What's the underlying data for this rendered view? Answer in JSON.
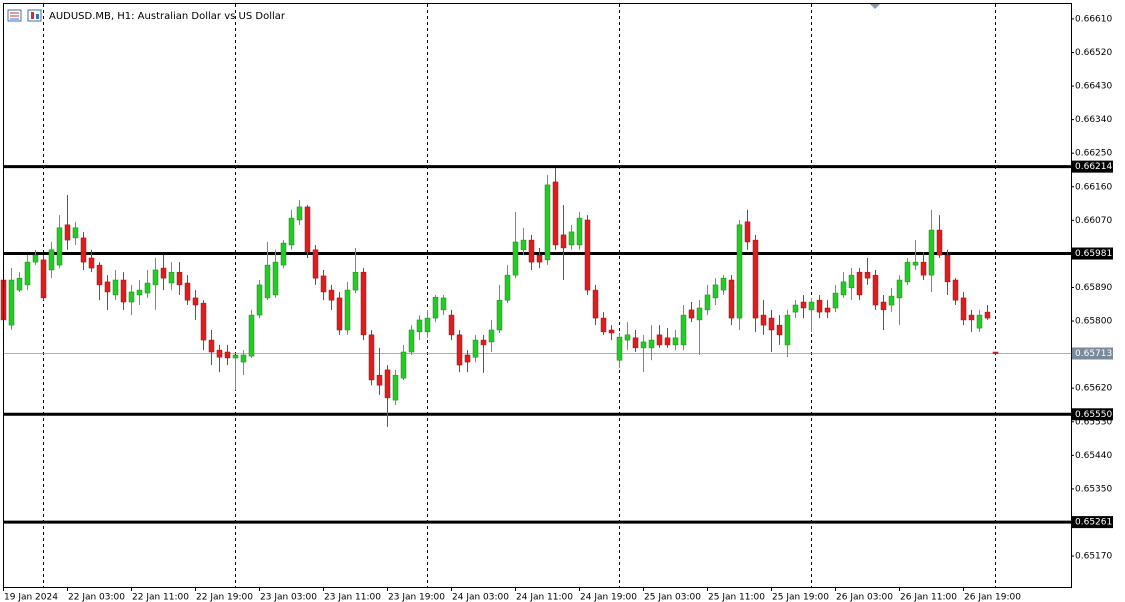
{
  "chart_data": {
    "type": "candlestick",
    "title": "AUDUSD.MB, H1: Australian Dollar vs US Dollar",
    "up_color": "#22cc22",
    "down_color": "#e01c1c",
    "categories": [
      "19 Jan 2024",
      null,
      null,
      null,
      null,
      null,
      null,
      null,
      "22 Jan 03:00",
      null,
      null,
      null,
      null,
      null,
      null,
      null,
      "22 Jan 11:00",
      null,
      null,
      null,
      null,
      null,
      null,
      null,
      "22 Jan 19:00",
      null,
      null,
      null,
      null,
      null,
      null,
      null,
      "23 Jan 03:00",
      null,
      null,
      null,
      null,
      null,
      null,
      null,
      "23 Jan 11:00",
      null,
      null,
      null,
      null,
      null,
      null,
      null,
      "23 Jan 19:00",
      null,
      null,
      null,
      null,
      null,
      null,
      null,
      "24 Jan 03:00",
      null,
      null,
      null,
      null,
      null,
      null,
      null,
      "24 Jan 11:00",
      null,
      null,
      null,
      null,
      null,
      null,
      null,
      "24 Jan 19:00",
      null,
      null,
      null,
      null,
      null,
      null,
      null,
      "25 Jan 03:00",
      null,
      null,
      null,
      null,
      null,
      null,
      null,
      "25 Jan 11:00",
      null,
      null,
      null,
      null,
      null,
      null,
      null,
      "25 Jan 19:00",
      null,
      null,
      null,
      null,
      null,
      null,
      null,
      "26 Jan 03:00",
      null,
      null,
      null,
      null,
      null,
      null,
      null,
      "26 Jan 11:00",
      null,
      null,
      null,
      null,
      null,
      null,
      null,
      "26 Jan 19:00",
      null,
      null,
      null,
      null
    ],
    "open": [
      0.6591,
      0.65789,
      0.65883,
      0.65897,
      0.65958,
      0.65964,
      0.65937,
      0.6595,
      0.66058,
      0.66023,
      0.66023,
      0.65969,
      0.6595,
      0.65905,
      0.6587,
      0.6591,
      0.65851,
      0.6587,
      0.65875,
      0.65897,
      0.65942,
      0.65902,
      0.65931,
      0.65902,
      0.65862,
      0.65848,
      0.65749,
      0.65722,
      0.65717,
      0.65701,
      0.6569,
      0.65706,
      0.65816,
      0.65862,
      0.6587,
      0.6595,
      0.66004,
      0.66071,
      0.66106,
      0.65991,
      0.65921,
      0.65883,
      0.65862,
      0.65776,
      0.65883,
      0.65931,
      0.65763,
      0.65655,
      0.65669,
      0.65588,
      0.65647,
      0.65717,
      0.65771,
      0.65771,
      0.65808,
      0.6583,
      0.65816,
      0.65763,
      0.65709,
      0.65703,
      0.65749,
      0.65744,
      0.65776,
      0.65856,
      0.65923,
      0.65991,
      0.66017,
      0.65977,
      0.65964,
      0.66173,
      0.66031,
      0.66004,
      0.66004,
      0.66071,
      0.65883,
      0.65808,
      0.65776,
      0.65695,
      0.65749,
      0.65755,
      0.65728,
      0.65728,
      0.65763,
      0.65755,
      0.65736,
      0.65736,
      0.6583,
      0.65803,
      0.6583,
      0.65862,
      0.65883,
      0.6591,
      0.65808,
      0.66066,
      0.66017,
      0.65816,
      0.65808,
      0.65789,
      0.65736,
      0.65824,
      0.65851,
      0.6583,
      0.65856,
      0.65835,
      0.65835,
      0.6587,
      0.65889,
      0.65931,
      0.65931,
      0.65923,
      0.65851,
      0.65843,
      0.65862,
      0.65905,
      0.6595,
      0.65958,
      0.65923,
      0.66044,
      0.65977,
      0.6591,
      0.65862,
      0.65816,
      0.65781,
      0.65824,
      0.65717
    ],
    "high": [
      0.65937,
      0.65942,
      0.65931,
      0.65977,
      0.65991,
      0.65977,
      0.66012,
      0.66084,
      0.66138,
      0.66066,
      0.66039,
      0.65991,
      0.65958,
      0.65923,
      0.65937,
      0.65931,
      0.65897,
      0.6591,
      0.65937,
      0.65969,
      0.65977,
      0.65958,
      0.65958,
      0.65923,
      0.65883,
      0.65856,
      0.65776,
      0.65736,
      0.65736,
      0.65709,
      0.65722,
      0.6583,
      0.6591,
      0.66012,
      0.65991,
      0.66017,
      0.66098,
      0.66125,
      0.66111,
      0.66004,
      0.65937,
      0.65897,
      0.65878,
      0.65905,
      0.65996,
      0.65942,
      0.65776,
      0.65728,
      0.65682,
      0.65669,
      0.65736,
      0.65789,
      0.65816,
      0.6583,
      0.6587,
      0.6587,
      0.6583,
      0.65776,
      0.65722,
      0.65763,
      0.65763,
      0.65803,
      0.65897,
      0.6595,
      0.66092,
      0.6605,
      0.66031,
      0.65996,
      0.66192,
      0.6621,
      0.66111,
      0.66058,
      0.66092,
      0.66084,
      0.65897,
      0.65824,
      0.65789,
      0.65768,
      0.65797,
      0.65776,
      0.65763,
      0.65789,
      0.65789,
      0.65781,
      0.65776,
      0.65843,
      0.65851,
      0.65856,
      0.65897,
      0.65915,
      0.65923,
      0.65923,
      0.66071,
      0.66098,
      0.66031,
      0.65856,
      0.6583,
      0.65816,
      0.6583,
      0.65856,
      0.6587,
      0.65862,
      0.6587,
      0.65856,
      0.65897,
      0.65931,
      0.65942,
      0.65942,
      0.65969,
      0.65937,
      0.6587,
      0.65889,
      0.65923,
      0.65969,
      0.66017,
      0.65985,
      0.66098,
      0.66084,
      0.65991,
      0.65915,
      0.65878,
      0.6583,
      0.6583,
      0.65843,
      0.65717
    ],
    "low": [
      0.65776,
      0.65776,
      0.65878,
      0.65883,
      0.6595,
      0.65856,
      0.65915,
      0.65942,
      0.65991,
      0.66004,
      0.65937,
      0.65931,
      0.65856,
      0.6583,
      0.65856,
      0.6583,
      0.65816,
      0.65843,
      0.65862,
      0.6583,
      0.65883,
      0.65883,
      0.6587,
      0.65843,
      0.65803,
      0.65722,
      0.65682,
      0.65663,
      0.65682,
      0.65615,
      0.65655,
      0.65701,
      0.65808,
      0.65856,
      0.65862,
      0.65942,
      0.65991,
      0.66058,
      0.65969,
      0.65897,
      0.65856,
      0.6583,
      0.65763,
      0.65763,
      0.65875,
      0.65749,
      0.65628,
      0.65602,
      0.65516,
      0.65575,
      0.65642,
      0.65709,
      0.65749,
      0.65755,
      0.65797,
      0.65816,
      0.65749,
      0.65663,
      0.65663,
      0.6569,
      0.65661,
      0.65717,
      0.65768,
      0.65848,
      0.65915,
      0.65977,
      0.65937,
      0.65942,
      0.6595,
      0.65991,
      0.6591,
      0.65991,
      0.65991,
      0.6587,
      0.65789,
      0.65763,
      0.65749,
      0.65674,
      0.65722,
      0.65717,
      0.65663,
      0.65695,
      0.65728,
      0.65728,
      0.65722,
      0.65722,
      0.65797,
      0.65709,
      0.65816,
      0.65843,
      0.6587,
      0.65789,
      0.65776,
      0.65991,
      0.65771,
      0.65763,
      0.65717,
      0.65736,
      0.65703,
      0.65808,
      0.65808,
      0.65771,
      0.65808,
      0.65808,
      0.65824,
      0.65862,
      0.65856,
      0.65856,
      0.65897,
      0.6583,
      0.65776,
      0.65824,
      0.65789,
      0.65897,
      0.65937,
      0.6591,
      0.65878,
      0.65969,
      0.6587,
      0.65843,
      0.65789,
      0.65771,
      0.65771,
      0.65803,
      0.65712
    ],
    "close": [
      0.65803,
      0.6591,
      0.65915,
      0.65958,
      0.65977,
      0.65862,
      0.65991,
      0.6605,
      0.66017,
      0.6605,
      0.65958,
      0.65942,
      0.65897,
      0.65878,
      0.6591,
      0.65851,
      0.65878,
      0.65883,
      0.65902,
      0.65937,
      0.65915,
      0.65931,
      0.65897,
      0.65856,
      0.65843,
      0.65749,
      0.65717,
      0.65703,
      0.65701,
      0.65709,
      0.65709,
      0.65816,
      0.65897,
      0.6595,
      0.65958,
      0.66009,
      0.66076,
      0.66106,
      0.65985,
      0.65915,
      0.65878,
      0.65856,
      0.65776,
      0.65883,
      0.65931,
      0.65763,
      0.65642,
      0.65628,
      0.65594,
      0.65655,
      0.65717,
      0.65776,
      0.65803,
      0.65808,
      0.65864,
      0.65862,
      0.65763,
      0.65682,
      0.6569,
      0.65749,
      0.65736,
      0.65776,
      0.65856,
      0.65923,
      0.66012,
      0.66017,
      0.65958,
      0.65958,
      0.66165,
      0.66004,
      0.65996,
      0.66039,
      0.66076,
      0.65883,
      0.65808,
      0.65771,
      0.65768,
      0.65757,
      0.65763,
      0.65728,
      0.65744,
      0.65749,
      0.65736,
      0.65736,
      0.65755,
      0.65816,
      0.65808,
      0.65835,
      0.6587,
      0.65897,
      0.65915,
      0.65808,
      0.66058,
      0.66012,
      0.65808,
      0.65789,
      0.65776,
      0.65763,
      0.65816,
      0.65843,
      0.65835,
      0.65851,
      0.65824,
      0.65824,
      0.65875,
      0.65905,
      0.65923,
      0.6587,
      0.65915,
      0.65843,
      0.6583,
      0.65867,
      0.6591,
      0.65958,
      0.65958,
      0.65923,
      0.66044,
      0.65977,
      0.65905,
      0.65856,
      0.65803,
      0.65803,
      0.65816,
      0.65808,
      0.65713
    ],
    "ylim": [
      0.65087,
      0.6665
    ],
    "yticks": [
      {
        "value": 0.6661,
        "label": "0.66610"
      },
      {
        "value": 0.6652,
        "label": "0.66520"
      },
      {
        "value": 0.6643,
        "label": "0.66430"
      },
      {
        "value": 0.6634,
        "label": "0.66340"
      },
      {
        "value": 0.6625,
        "label": "0.66250"
      },
      {
        "value": 0.6616,
        "label": "0.66160"
      },
      {
        "value": 0.6607,
        "label": "0.66070"
      },
      {
        "value": 0.6589,
        "label": "0.65890"
      },
      {
        "value": 0.658,
        "label": "0.65800"
      },
      {
        "value": 0.6562,
        "label": "0.65620"
      },
      {
        "value": 0.6553,
        "label": "0.65530"
      },
      {
        "value": 0.6544,
        "label": "0.65440"
      },
      {
        "value": 0.6535,
        "label": "0.65350"
      },
      {
        "value": 0.6517,
        "label": "0.65170"
      }
    ],
    "levels": [
      0.66214,
      0.65981,
      {
        "value": 0.6555,
        "label": "0.65550"
      },
      0.65261
    ],
    "current_price": 0.65713
  }
}
